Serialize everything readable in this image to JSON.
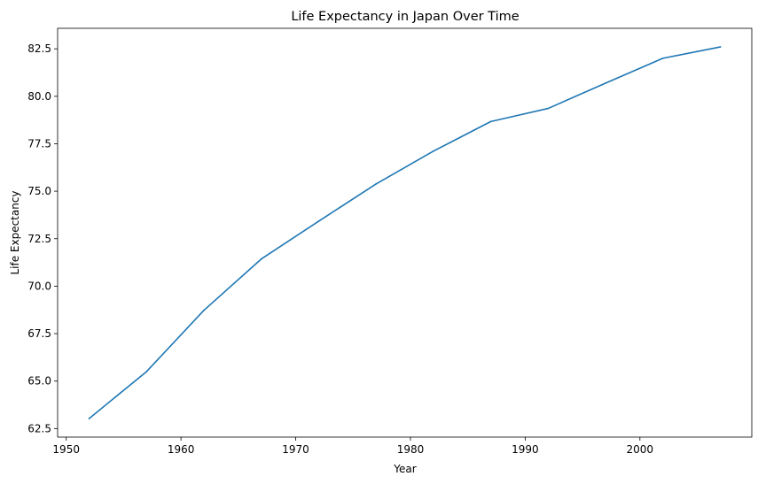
{
  "chart_data": {
    "type": "line",
    "title": "Life Expectancy in Japan Over Time",
    "xlabel": "Year",
    "ylabel": "Life Expectancy",
    "x": [
      1952,
      1957,
      1962,
      1967,
      1972,
      1977,
      1982,
      1987,
      1992,
      1997,
      2002,
      2007
    ],
    "series": [
      {
        "values": [
          63.03,
          65.5,
          68.73,
          71.43,
          73.42,
          75.38,
          77.11,
          78.67,
          79.36,
          80.69,
          82.0,
          82.6
        ],
        "color": "#1f77b4"
      }
    ],
    "xlim": [
      1949.25,
      2009.75
    ],
    "ylim": [
      62.05,
      83.58
    ],
    "x_ticks": [
      1950,
      1960,
      1970,
      1980,
      1990,
      2000
    ],
    "x_tick_labels": [
      "1950",
      "1960",
      "1970",
      "1980",
      "1990",
      "2000"
    ],
    "y_ticks": [
      62.5,
      65.0,
      67.5,
      70.0,
      72.5,
      75.0,
      77.5,
      80.0,
      82.5
    ],
    "y_tick_labels": [
      "62.5",
      "65.0",
      "67.5",
      "70.0",
      "72.5",
      "75.0",
      "77.5",
      "80.0",
      "82.5"
    ],
    "grid": false,
    "legend": "none"
  }
}
